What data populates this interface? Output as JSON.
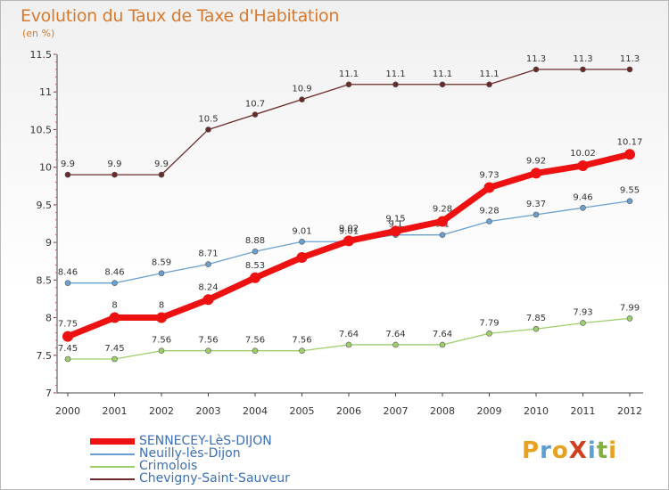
{
  "title": "Evolution du Taux de Taxe d'Habitation",
  "subtitle": "(en %)",
  "logo": {
    "text": "ProXiti",
    "letters": [
      {
        "ch": "P",
        "color": "#e8a020"
      },
      {
        "ch": "r",
        "color": "#5aa0d0"
      },
      {
        "ch": "o",
        "color": "#e8a020"
      },
      {
        "ch": "X",
        "color": "#d04020"
      },
      {
        "ch": "i",
        "color": "#5aa0d0"
      },
      {
        "ch": "t",
        "color": "#80b040"
      },
      {
        "ch": "i",
        "color": "#e8a020"
      }
    ]
  },
  "chart_data": {
    "type": "line",
    "title": "Evolution du Taux de Taxe d'Habitation",
    "ylabel": "(en %)",
    "xlabel": "",
    "x": [
      "2000",
      "2001",
      "2002",
      "2003",
      "2004",
      "2005",
      "2006",
      "2007",
      "2008",
      "2009",
      "2010",
      "2011",
      "2012"
    ],
    "ylim": [
      7,
      11.5
    ],
    "yticks": [
      "7",
      "7.5",
      "8",
      "8.5",
      "9",
      "9.5",
      "10",
      "10.5",
      "11",
      "11.5"
    ],
    "grid": false,
    "legend_position": "bottom-left",
    "series": [
      {
        "name": "Chevigny-Saint-Sauveur",
        "color": "#6b2a2a",
        "values": [
          9.9,
          9.9,
          9.9,
          10.5,
          10.7,
          10.9,
          11.1,
          11.1,
          11.1,
          11.1,
          11.3,
          11.3,
          11.3
        ],
        "labels": [
          "9.9",
          "9.9",
          "9.9",
          "10.5",
          "10.7",
          "10.9",
          "11.1",
          "11.1",
          "11.1",
          "11.1",
          "11.3",
          "11.3",
          "11.3"
        ]
      },
      {
        "name": "Neuilly-lès-Dijon",
        "color": "#6aa0d0",
        "values": [
          8.46,
          8.46,
          8.59,
          8.71,
          8.88,
          9.01,
          9.01,
          9.1,
          9.1,
          9.28,
          9.37,
          9.46,
          9.55
        ],
        "labels": [
          "8.46",
          "8.46",
          "8.59",
          "8.71",
          "8.88",
          "9.01",
          "9.01",
          "9.1",
          "9.1",
          "9.28",
          "9.37",
          "9.46",
          "9.55"
        ]
      },
      {
        "name": "Crimolois",
        "color": "#9ccf6a",
        "values": [
          7.45,
          7.45,
          7.56,
          7.56,
          7.56,
          7.56,
          7.64,
          7.64,
          7.64,
          7.79,
          7.85,
          7.93,
          7.99
        ],
        "labels": [
          "7.45",
          "7.45",
          "7.56",
          "7.56",
          "7.56",
          "7.56",
          "7.64",
          "7.64",
          "7.64",
          "7.79",
          "7.85",
          "7.93",
          "7.99"
        ]
      },
      {
        "name": "SENNECEY-LèS-DIJON",
        "color": "#ee1111",
        "values": [
          7.75,
          8,
          8,
          8.24,
          8.53,
          8.8,
          9.02,
          9.15,
          9.28,
          9.73,
          9.92,
          10.02,
          10.17
        ],
        "labels": [
          "7.75",
          "8",
          "8",
          "8.24",
          "8.53",
          "",
          "9.02",
          "9.15",
          "9.28",
          "9.73",
          "9.92",
          "10.02",
          "10.17"
        ]
      }
    ],
    "legend": [
      "SENNECEY-LèS-DIJON",
      "Neuilly-lès-Dijon",
      "Crimolois",
      "Chevigny-Saint-Sauveur"
    ]
  }
}
